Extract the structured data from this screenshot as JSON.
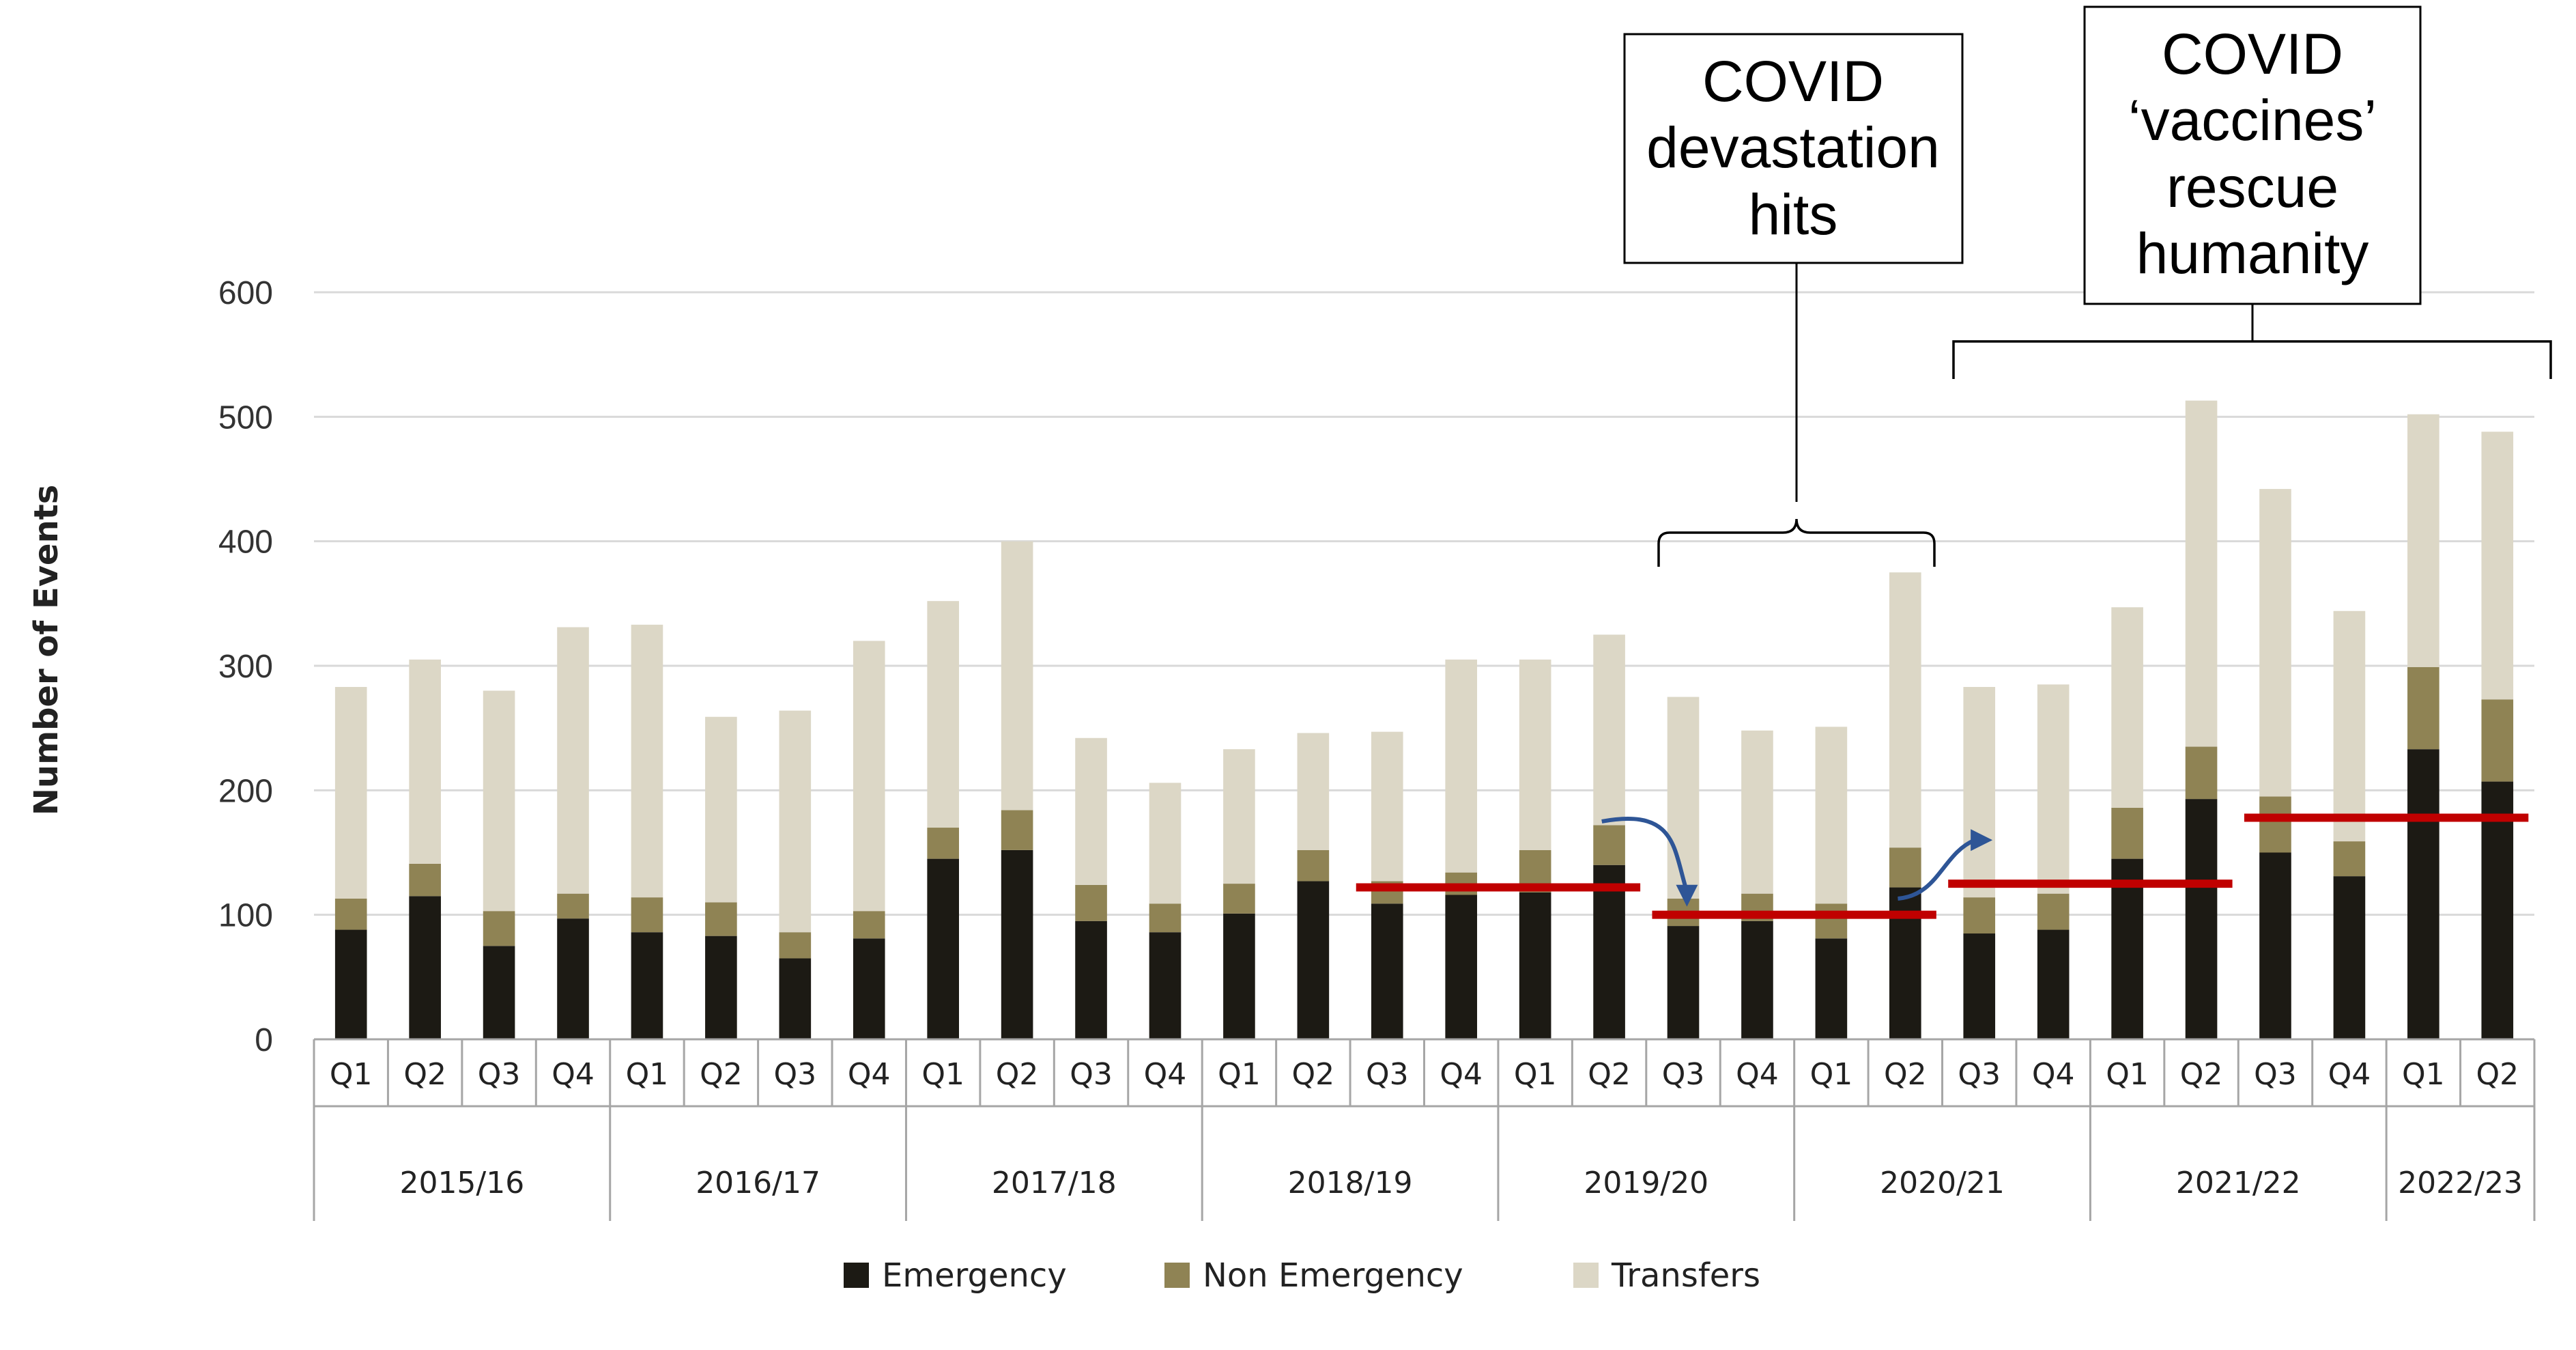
{
  "chart_data": {
    "type": "bar",
    "stacked": true,
    "ylabel": "Number of Events",
    "ylim": [
      0,
      600
    ],
    "yticks": [
      0,
      100,
      200,
      300,
      400,
      500,
      600
    ],
    "grid": "horizontal",
    "legend_position": "bottom-center",
    "years": [
      {
        "label": "2015/16",
        "quarters": [
          "Q1",
          "Q2",
          "Q3",
          "Q4"
        ]
      },
      {
        "label": "2016/17",
        "quarters": [
          "Q1",
          "Q2",
          "Q3",
          "Q4"
        ]
      },
      {
        "label": "2017/18",
        "quarters": [
          "Q1",
          "Q2",
          "Q3",
          "Q4"
        ]
      },
      {
        "label": "2018/19",
        "quarters": [
          "Q1",
          "Q2",
          "Q3",
          "Q4"
        ]
      },
      {
        "label": "2019/20",
        "quarters": [
          "Q1",
          "Q2",
          "Q3",
          "Q4"
        ]
      },
      {
        "label": "2020/21",
        "quarters": [
          "Q1",
          "Q2",
          "Q3",
          "Q4"
        ]
      },
      {
        "label": "2021/22",
        "quarters": [
          "Q1",
          "Q2",
          "Q3",
          "Q4"
        ]
      },
      {
        "label": "2022/23",
        "quarters": [
          "Q1",
          "Q2"
        ]
      }
    ],
    "series": [
      {
        "name": "Emergency",
        "color": "#1c1a14",
        "values": [
          88,
          115,
          75,
          97,
          86,
          83,
          65,
          81,
          145,
          152,
          95,
          86,
          101,
          127,
          109,
          116,
          118,
          140,
          91,
          95,
          81,
          122,
          85,
          88,
          145,
          193,
          150,
          131,
          233,
          207
        ]
      },
      {
        "name": "Non Emergency",
        "color": "#8f8354",
        "values": [
          25,
          26,
          28,
          20,
          28,
          27,
          21,
          22,
          25,
          32,
          29,
          23,
          24,
          25,
          18,
          18,
          34,
          32,
          22,
          22,
          28,
          32,
          29,
          29,
          41,
          42,
          45,
          28,
          66,
          66
        ]
      },
      {
        "name": "Transfers",
        "color": "#dcd7c6",
        "values": [
          170,
          164,
          177,
          214,
          219,
          149,
          178,
          217,
          182,
          216,
          118,
          97,
          108,
          94,
          120,
          171,
          153,
          153,
          162,
          131,
          142,
          221,
          169,
          168,
          161,
          278,
          247,
          185,
          203,
          215
        ]
      }
    ],
    "annotations": [
      {
        "id": "covid-hits",
        "text": [
          "COVID",
          "devastation",
          "hits"
        ]
      },
      {
        "id": "covid-vaccines",
        "text": [
          "COVID",
          "‘vaccines’",
          "rescue",
          "humanity"
        ]
      }
    ],
    "reference_lines": [
      {
        "color": "#c00000",
        "from_index": 14,
        "to_index": 17,
        "value": 122
      },
      {
        "color": "#c00000",
        "from_index": 18,
        "to_index": 21,
        "value": 100
      },
      {
        "color": "#c00000",
        "from_index": 22,
        "to_index": 25,
        "value": 125
      },
      {
        "color": "#c00000",
        "from_index": 26,
        "to_index": 29,
        "value": 178
      }
    ],
    "arrows": [
      {
        "color": "#2e5596",
        "from_index": 17,
        "to_index": 18
      },
      {
        "color": "#2e5596",
        "from_index": 21,
        "to_index": 22
      }
    ]
  }
}
